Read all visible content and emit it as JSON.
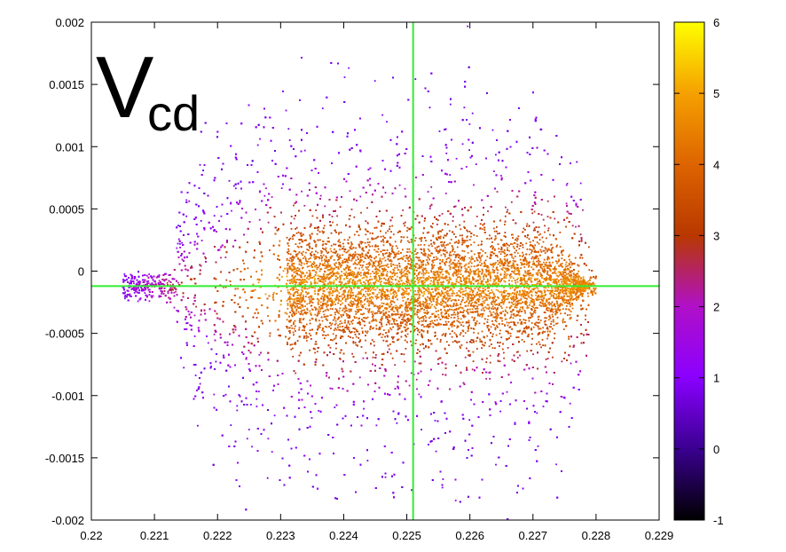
{
  "chart_data": {
    "type": "heatmap",
    "title": "",
    "annotation": {
      "main": "V",
      "subscript": "cd"
    },
    "xlabel": "",
    "ylabel": "",
    "xlim": [
      0.22,
      0.229
    ],
    "ylim": [
      -0.002,
      0.002
    ],
    "x_ticks": [
      0.22,
      0.221,
      0.222,
      0.223,
      0.224,
      0.225,
      0.226,
      0.227,
      0.228,
      0.229
    ],
    "x_tick_labels": [
      "0.22",
      "0.221",
      "0.222",
      "0.223",
      "0.224",
      "0.225",
      "0.226",
      "0.227",
      "0.228",
      "0.229"
    ],
    "y_ticks": [
      0.002,
      0.0015,
      0.001,
      0.0005,
      0,
      -0.0005,
      -0.001,
      -0.0015,
      -0.002
    ],
    "y_tick_labels": [
      "0.002",
      "0.0015",
      "0.001",
      "0.0005",
      "0",
      "-0.0005",
      "-0.001",
      "-0.0015",
      "-0.002"
    ],
    "colorbar": {
      "range": [
        -1,
        6
      ],
      "ticks": [
        6,
        5,
        4,
        3,
        2,
        1,
        0,
        -1
      ],
      "tick_labels": [
        "6",
        "5",
        "4",
        "3",
        "2",
        "1",
        "0",
        "-1"
      ],
      "stops": [
        {
          "value": -1,
          "color": "#000000"
        },
        {
          "value": 0,
          "color": "#3a0090"
        },
        {
          "value": 1,
          "color": "#8a00ff"
        },
        {
          "value": 2,
          "color": "#b010c8"
        },
        {
          "value": 3,
          "color": "#b83800"
        },
        {
          "value": 4,
          "color": "#dd6400"
        },
        {
          "value": 5,
          "color": "#f5a000"
        },
        {
          "value": 6,
          "color": "#ffff00"
        }
      ]
    },
    "distribution": {
      "x_min": 0.2213,
      "x_max": 0.2279,
      "x_center": 0.2251,
      "y_center": -0.00012,
      "y_half_width": 0.00155,
      "core_x_start": 0.2231,
      "tip_x": 0.2279,
      "tip_y": -0.00012
    },
    "reference_lines": {
      "vertical_x": 0.2251,
      "horizontal_y": -0.00012,
      "color": "#33ee33"
    }
  }
}
